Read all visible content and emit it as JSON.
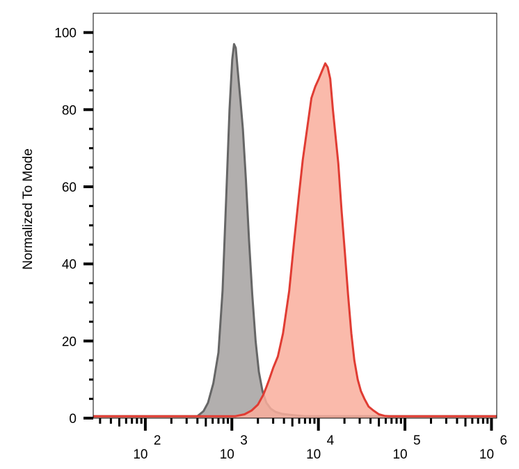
{
  "chart_data": {
    "type": "area",
    "title": "",
    "xlabel": "",
    "ylabel": "Normalized To Mode",
    "xscale": "log",
    "xlim": [
      25,
      1150000
    ],
    "ylim": [
      0,
      105
    ],
    "grid": false,
    "legend": "none",
    "y_ticks": [
      {
        "value": 0,
        "label": "0"
      },
      {
        "value": 20,
        "label": "20"
      },
      {
        "value": 40,
        "label": "40"
      },
      {
        "value": 60,
        "label": "60"
      },
      {
        "value": 80,
        "label": "80"
      },
      {
        "value": 100,
        "label": "100"
      }
    ],
    "x_ticks": [
      {
        "value": 100,
        "base": "10",
        "exp": "2"
      },
      {
        "value": 1000,
        "base": "10",
        "exp": "3"
      },
      {
        "value": 10000,
        "base": "10",
        "exp": "4"
      },
      {
        "value": 100000,
        "base": "10",
        "exp": "5"
      },
      {
        "value": 1000000,
        "base": "10",
        "exp": "6"
      }
    ],
    "series": [
      {
        "color": "#666666",
        "fill": "#b2afae",
        "x": [
          25,
          400,
          470,
          530,
          610,
          700,
          780,
          860,
          940,
          1010,
          1060,
          1110,
          1170,
          1250,
          1340,
          1450,
          1580,
          1720,
          1880,
          2050,
          2260,
          2500,
          2800,
          3200,
          3800,
          4500,
          5500,
          7000,
          9000,
          10500,
          1150000
        ],
        "y": [
          0.5,
          0.5,
          1.8,
          4,
          9,
          17,
          33,
          57,
          80,
          93,
          97,
          96,
          90,
          83,
          75,
          62,
          46,
          32,
          20,
          12,
          7,
          4,
          2.5,
          1.6,
          1.1,
          0.9,
          0.7,
          0.5,
          0.5,
          0.5,
          0.5
        ]
      },
      {
        "color": "#e03c33",
        "fill": "#f9ae9c",
        "x": [
          25,
          1100,
          1400,
          1700,
          2000,
          2300,
          2500,
          2700,
          3000,
          3400,
          3900,
          4600,
          5200,
          5900,
          6600,
          7400,
          8300,
          9200,
          10100,
          11000,
          12000,
          12800,
          13700,
          14700,
          15800,
          17000,
          18500,
          20200,
          22000,
          24000,
          26000,
          28500,
          31000,
          34000,
          38000,
          43000,
          50000,
          58000,
          66000,
          1150000
        ],
        "y": [
          0.5,
          0.5,
          1,
          2,
          3.5,
          6,
          8,
          10,
          13,
          16,
          22,
          33,
          45,
          57,
          67,
          75,
          83,
          86,
          88,
          90,
          92,
          91,
          88,
          80,
          73,
          66,
          54,
          43,
          32,
          22,
          15,
          10,
          7,
          5,
          3,
          2,
          1,
          0.6,
          0.5,
          0.5
        ]
      }
    ]
  }
}
